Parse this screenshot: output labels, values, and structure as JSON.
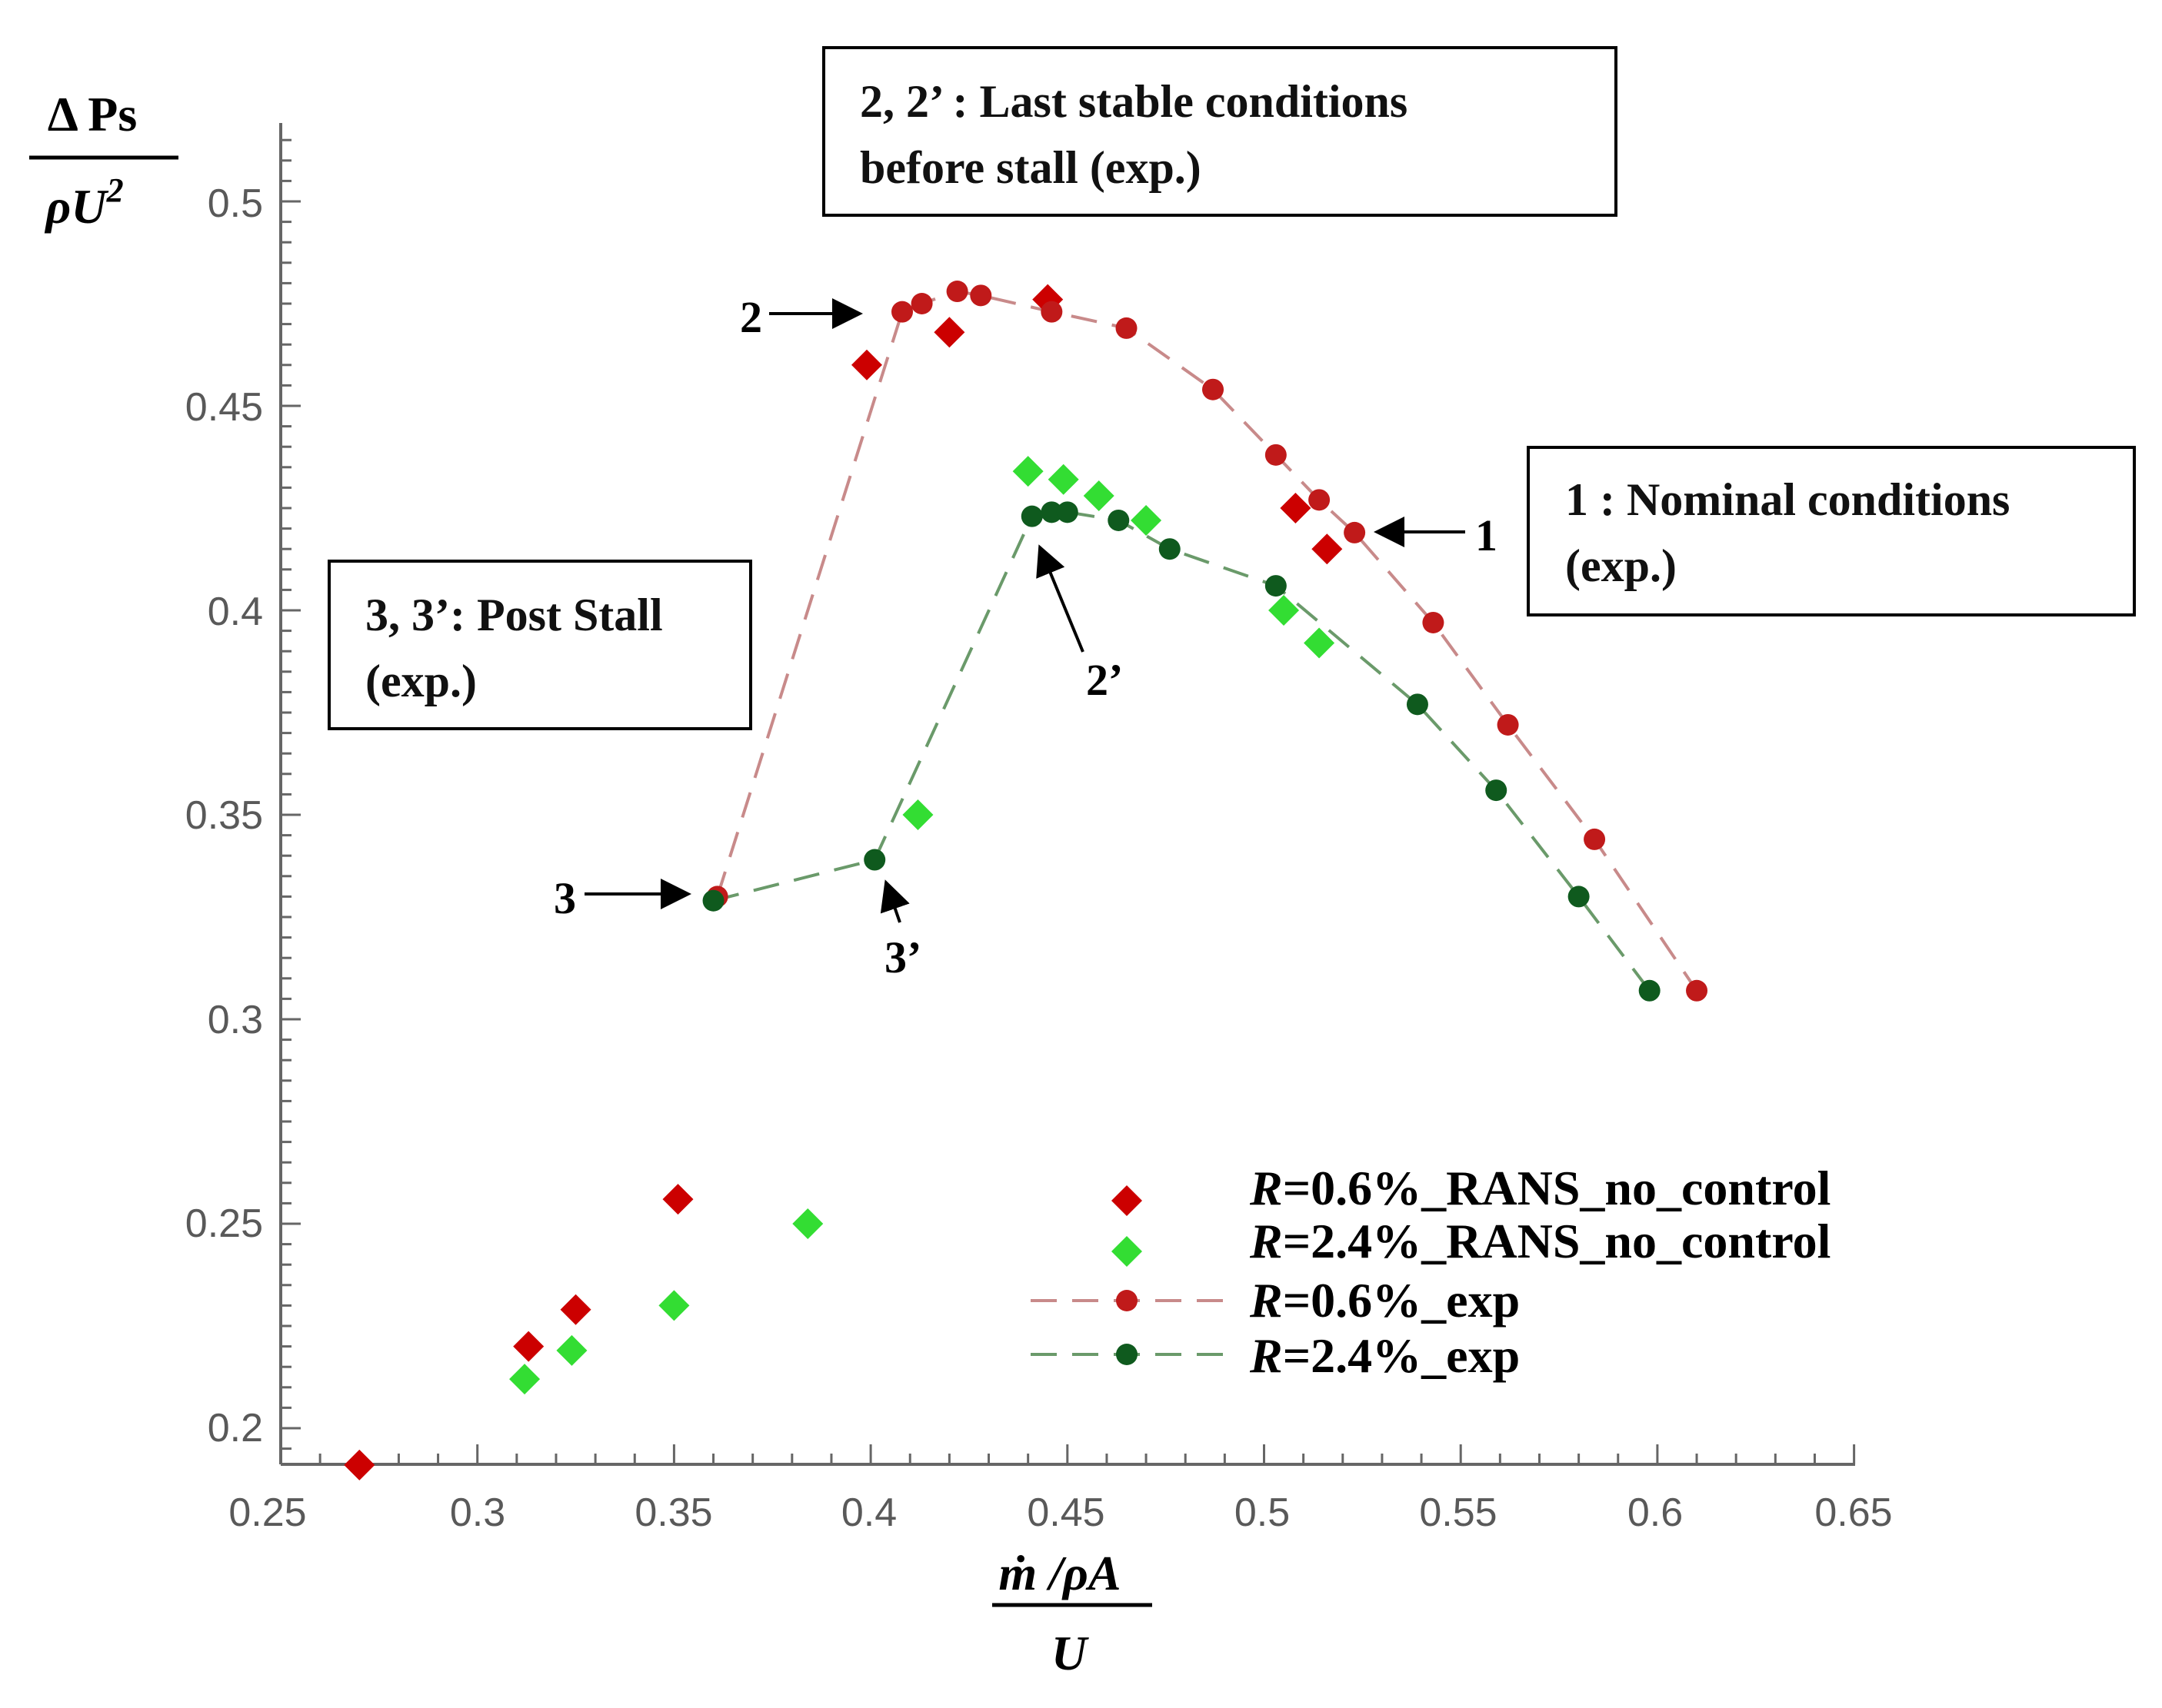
{
  "chart_data": {
    "type": "scatter",
    "colors": {
      "rans_06": "#cc0000",
      "rans_24": "#33dd33",
      "exp_06": "#c01a1a",
      "exp_24": "#0f5a1e",
      "line_06": "#c88a8a",
      "line_24": "#6a9a6a"
    },
    "xlabel": {
      "numerator": "ṁ /ρA",
      "denominator": "U"
    },
    "ylabel": {
      "numerator": "Δ Ps",
      "denominator": "ρU",
      "superscript": "2"
    },
    "xlim": [
      0.25,
      0.65
    ],
    "ylim": [
      0.19,
      0.52
    ],
    "xticks": [
      "0.25",
      "0.3",
      "0.35",
      "0.4",
      "0.45",
      "0.5",
      "0.55",
      "0.6",
      "0.65"
    ],
    "yticks": [
      "0.2",
      "0.25",
      "0.3",
      "0.35",
      "0.4",
      "0.45",
      "0.5"
    ],
    "series": [
      {
        "name": "R=0.6%_RANS_no_control",
        "marker": "diamond",
        "color": "#cc0000",
        "points": [
          {
            "x": 0.27,
            "y": 0.191
          },
          {
            "x": 0.313,
            "y": 0.22
          },
          {
            "x": 0.325,
            "y": 0.229
          },
          {
            "x": 0.351,
            "y": 0.256
          },
          {
            "x": 0.399,
            "y": 0.46
          },
          {
            "x": 0.42,
            "y": 0.468
          },
          {
            "x": 0.445,
            "y": 0.476
          },
          {
            "x": 0.508,
            "y": 0.425
          },
          {
            "x": 0.516,
            "y": 0.415
          }
        ]
      },
      {
        "name": "R=2.4%_RANS_no_control",
        "marker": "diamond",
        "color": "#33dd33",
        "points": [
          {
            "x": 0.312,
            "y": 0.212
          },
          {
            "x": 0.324,
            "y": 0.219
          },
          {
            "x": 0.35,
            "y": 0.23
          },
          {
            "x": 0.384,
            "y": 0.25
          },
          {
            "x": 0.412,
            "y": 0.35
          },
          {
            "x": 0.44,
            "y": 0.434
          },
          {
            "x": 0.449,
            "y": 0.432
          },
          {
            "x": 0.458,
            "y": 0.428
          },
          {
            "x": 0.47,
            "y": 0.422
          },
          {
            "x": 0.505,
            "y": 0.4
          },
          {
            "x": 0.514,
            "y": 0.392
          }
        ]
      },
      {
        "name": "R=0.6%_exp",
        "marker": "circle",
        "line": "dashed",
        "color": "#c01a1a",
        "points": [
          {
            "x": 0.361,
            "y": 0.33
          },
          {
            "x": 0.408,
            "y": 0.473
          },
          {
            "x": 0.413,
            "y": 0.475
          },
          {
            "x": 0.422,
            "y": 0.478
          },
          {
            "x": 0.428,
            "y": 0.477
          },
          {
            "x": 0.446,
            "y": 0.473
          },
          {
            "x": 0.465,
            "y": 0.469
          },
          {
            "x": 0.487,
            "y": 0.454
          },
          {
            "x": 0.503,
            "y": 0.438
          },
          {
            "x": 0.514,
            "y": 0.427
          },
          {
            "x": 0.523,
            "y": 0.419
          },
          {
            "x": 0.543,
            "y": 0.397
          },
          {
            "x": 0.562,
            "y": 0.372
          },
          {
            "x": 0.584,
            "y": 0.344
          },
          {
            "x": 0.61,
            "y": 0.307
          }
        ]
      },
      {
        "name": "R=2.4%_exp",
        "marker": "circle",
        "line": "dashed",
        "color": "#0f5a1e",
        "points": [
          {
            "x": 0.36,
            "y": 0.329
          },
          {
            "x": 0.401,
            "y": 0.339
          },
          {
            "x": 0.441,
            "y": 0.423
          },
          {
            "x": 0.446,
            "y": 0.424
          },
          {
            "x": 0.45,
            "y": 0.424
          },
          {
            "x": 0.463,
            "y": 0.422
          },
          {
            "x": 0.476,
            "y": 0.415
          },
          {
            "x": 0.503,
            "y": 0.406
          },
          {
            "x": 0.539,
            "y": 0.377
          },
          {
            "x": 0.559,
            "y": 0.356
          },
          {
            "x": 0.58,
            "y": 0.33
          },
          {
            "x": 0.598,
            "y": 0.307
          }
        ]
      }
    ],
    "legend": {
      "position": "lower-right",
      "entries": [
        {
          "prefix": "R",
          "text": "=0.6%_RANS_no_control",
          "series": 0
        },
        {
          "prefix": "R",
          "text": "=2.4%_RANS_no_control",
          "series": 1
        },
        {
          "prefix": "R",
          "text": "=0.6%_exp",
          "series": 2
        },
        {
          "prefix": "R",
          "text": "=2.4%_exp",
          "series": 3
        }
      ]
    },
    "annotations": {
      "box_stall_line1": "2, 2’ : Last stable conditions",
      "box_stall_line2": "before stall (exp.)",
      "box_nominal_line1": "1 : Nominal conditions",
      "box_nominal_line2": "(exp.)",
      "box_post_line1": "3, 3’: Post Stall",
      "box_post_line2": "(exp.)",
      "label_1": "1",
      "label_2": "2",
      "label_2p": "2’",
      "label_3": "3",
      "label_3p": "3’"
    }
  }
}
